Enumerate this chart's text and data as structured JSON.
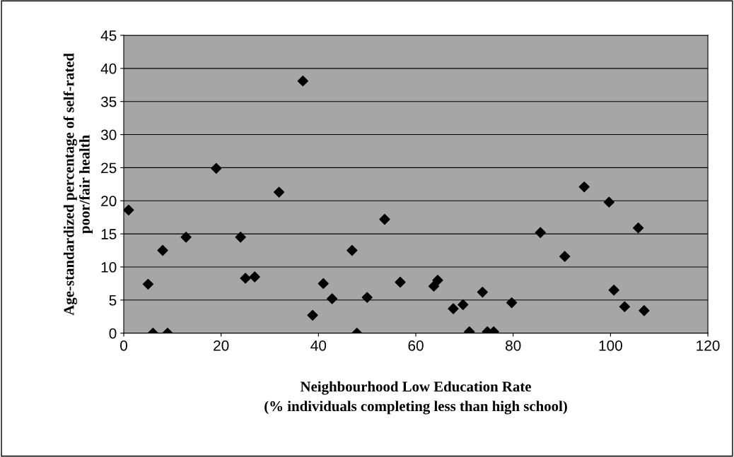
{
  "chart_data": {
    "type": "scatter",
    "xlabel": "Neighbourhood Low Education Rate\n(% individuals completing less than high school)",
    "ylabel": "Age-standardized percentage of self-rated\npoor/fair health",
    "x": [
      1,
      5,
      6,
      8,
      9,
      12.8,
      19,
      24,
      25,
      26.9,
      31.9,
      36.8,
      38.8,
      41,
      42.8,
      46.9,
      47.9,
      50,
      53.6,
      56.8,
      63.7,
      64.5,
      67.7,
      69.7,
      71,
      73.7,
      74.7,
      76,
      79.7,
      85.6,
      90.6,
      94.6,
      99.7,
      100.7,
      102.9,
      105.7,
      106.9
    ],
    "series": [
      {
        "color": "#000000",
        "values": [
          18.6,
          7.4,
          0,
          12.5,
          0,
          14.5,
          24.9,
          14.5,
          8.3,
          8.5,
          21.3,
          38.1,
          2.7,
          7.5,
          5.2,
          12.5,
          0,
          5.4,
          17.2,
          7.7,
          7.1,
          8.0,
          3.7,
          4.3,
          0.2,
          6.2,
          0.2,
          0.2,
          4.6,
          15.2,
          11.6,
          22.1,
          19.8,
          6.5,
          4.0,
          15.9,
          3.4
        ]
      }
    ],
    "xlim": [
      0,
      120
    ],
    "xticks": [
      0,
      20,
      40,
      60,
      80,
      100,
      120
    ],
    "ylim": [
      0,
      45
    ],
    "yticks": [
      0,
      5,
      10,
      15,
      20,
      25,
      30,
      35,
      40,
      45
    ],
    "grid": "y",
    "marker": "diamond",
    "legend": false
  }
}
